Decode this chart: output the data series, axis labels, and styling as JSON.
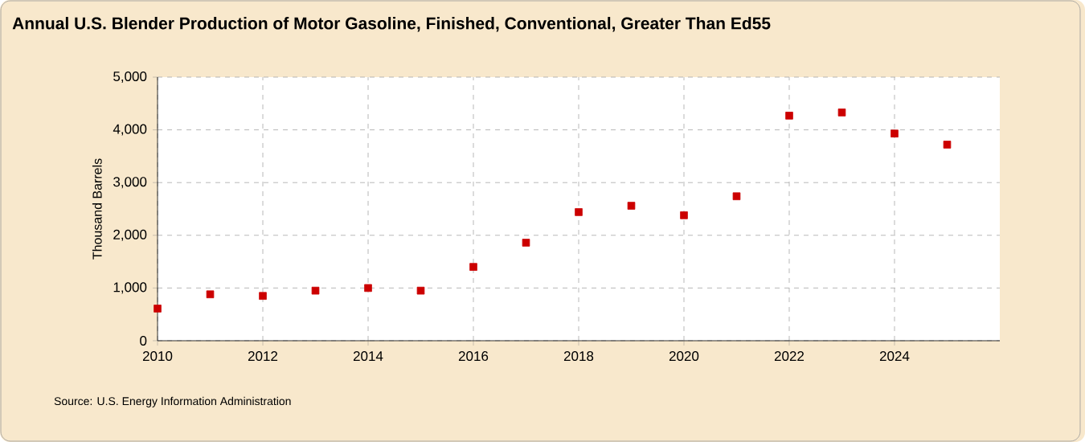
{
  "chart_data": {
    "type": "scatter",
    "title": "Annual U.S. Blender Production of Motor Gasoline, Finished, Conventional, Greater Than Ed55",
    "ylabel": "Thousand Barrels",
    "annotations": [
      "Source: U.S. Energy Information Administration"
    ],
    "x": [
      2010,
      2011,
      2012,
      2013,
      2014,
      2015,
      2016,
      2017,
      2018,
      2019,
      2020,
      2021,
      2022,
      2023,
      2024,
      2025
    ],
    "values": [
      610,
      880,
      850,
      950,
      1000,
      950,
      1400,
      1860,
      2440,
      2560,
      2380,
      2740,
      4270,
      4330,
      3930,
      3720
    ],
    "color": "#cc0000",
    "marker": "square",
    "grid": true,
    "xlim": [
      2010,
      2026
    ],
    "xticks": [
      2010,
      2012,
      2014,
      2016,
      2018,
      2020,
      2022,
      2024
    ],
    "ylim": [
      0,
      5000
    ],
    "yticks": [
      0,
      {
        "value": 1000,
        "label": "1,000"
      },
      {
        "value": 2000,
        "label": "2,000"
      },
      {
        "value": 3000,
        "label": "3,000"
      },
      {
        "value": 4000,
        "label": "4,000"
      },
      {
        "value": 5000,
        "label": "5,000"
      }
    ]
  }
}
